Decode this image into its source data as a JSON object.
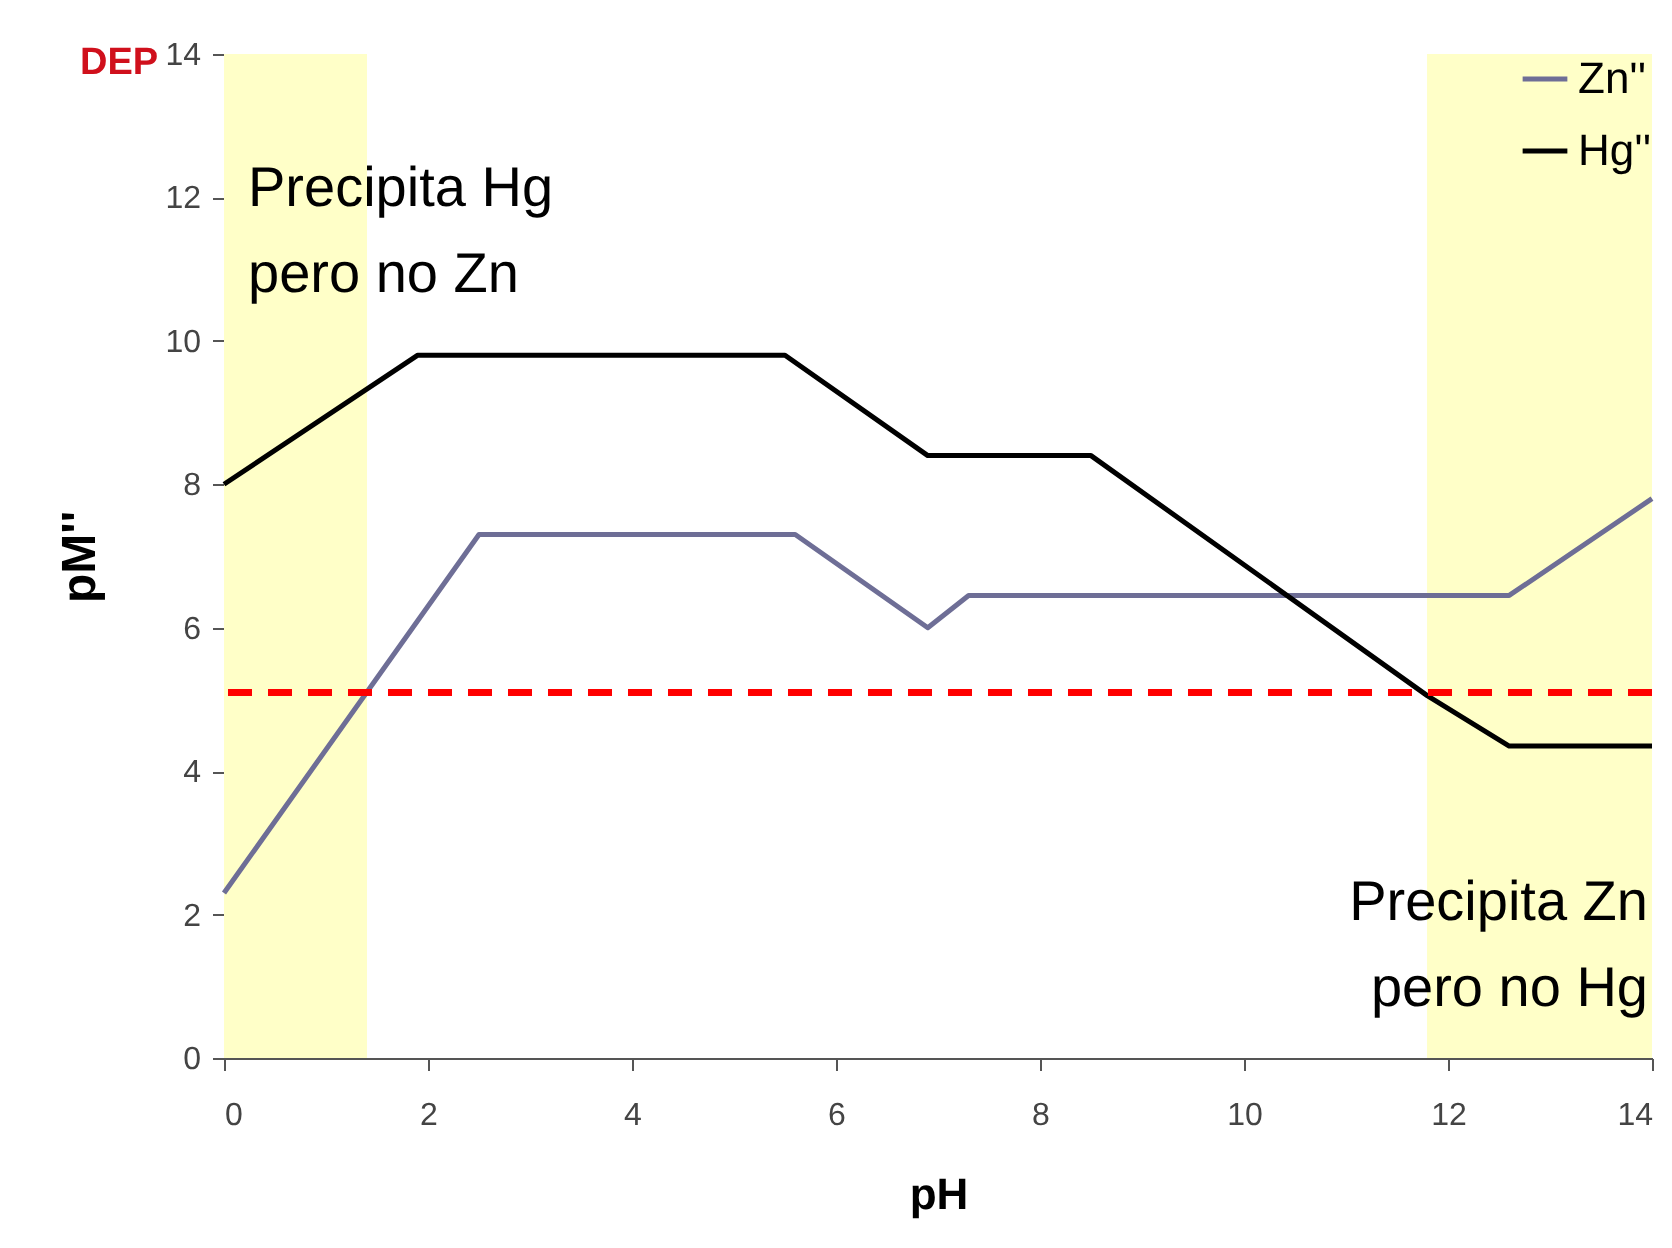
{
  "chart_data": {
    "type": "line",
    "xlabel": "pH",
    "ylabel": "pM''",
    "xlim": [
      0,
      14
    ],
    "xticks": [
      0,
      2,
      4,
      6,
      8,
      10,
      12,
      14
    ],
    "ylim": [
      0,
      14
    ],
    "yticks": [
      0,
      2,
      4,
      6,
      8,
      10,
      12,
      14
    ],
    "grid": false,
    "legend": "top right",
    "marker": "none",
    "line_style": "solid",
    "series": [
      {
        "name": "Zn''",
        "color": "#6e6e96",
        "x": [
          0,
          2.5,
          5.6,
          6.9,
          7.3,
          12.6,
          14
        ],
        "values": [
          2.3,
          7.3,
          7.3,
          6.0,
          6.45,
          6.45,
          7.8
        ]
      },
      {
        "name": "Hg''",
        "color": "#000000",
        "x": [
          0,
          1.9,
          5.5,
          6.9,
          8.5,
          11.8,
          12.6,
          14
        ],
        "values": [
          8.0,
          9.8,
          9.8,
          8.4,
          8.4,
          5.05,
          4.35,
          4.35
        ]
      }
    ],
    "ref_lines": [
      {
        "axis": "y",
        "value": 5.1,
        "color": "#ff0000",
        "line_style": "dashed"
      }
    ],
    "bands": [
      {
        "axis": "x",
        "from": 0,
        "to": 1.4,
        "color": "#ffffc8"
      },
      {
        "axis": "x",
        "from": 11.8,
        "to": 14,
        "color": "#ffffc8"
      }
    ],
    "annotations": [
      "DEP",
      "Precipita Hg\npero no Zn",
      "Precipita Zn\npero no Hg"
    ]
  }
}
